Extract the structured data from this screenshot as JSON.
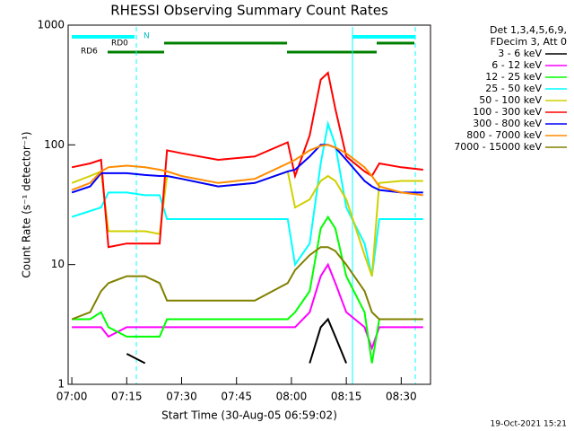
{
  "chart_data": {
    "type": "line",
    "title": "RHESSI Observing Summary Count Rates",
    "x_label": "Start Time (30-Aug-05 06:59:02)",
    "y_label": "Count Rate (s⁻¹ detector⁻¹)",
    "legend_header": [
      "Det 1,3,4,5,6,9,",
      "FDecim 3, Att 0"
    ],
    "footer": "19-Oct-2021 15:21",
    "annotations": [
      "N",
      "RD0",
      "RD6"
    ],
    "log_y": true,
    "legend": "right",
    "xlim": [
      "06:59",
      "08:38"
    ],
    "xticks": [
      "07:00",
      "07:15",
      "07:30",
      "07:45",
      "08:00",
      "08:15",
      "08:30"
    ],
    "ylim": [
      1,
      1000
    ],
    "yticks": [
      1,
      10,
      100,
      1000
    ],
    "x": [
      "07:00",
      "07:05",
      "07:08",
      "07:10",
      "07:15",
      "07:20",
      "07:24",
      "07:26",
      "07:30",
      "07:40",
      "07:50",
      "07:59",
      "08:01",
      "08:05",
      "08:08",
      "08:10",
      "08:12",
      "08:15",
      "08:20",
      "08:22",
      "08:24",
      "08:30",
      "08:36"
    ],
    "series": [
      {
        "name": "3 - 6 keV",
        "color": "#000000",
        "values": [
          null,
          null,
          null,
          null,
          1.8,
          1.5,
          null,
          null,
          null,
          null,
          null,
          null,
          null,
          1.5,
          3,
          3.5,
          2.5,
          1.5,
          null,
          null,
          null,
          null,
          null
        ]
      },
      {
        "name": "6 - 12 keV",
        "color": "#ff00ff",
        "values": [
          3,
          3,
          3,
          2.5,
          3,
          3,
          3,
          3,
          3,
          3,
          3,
          3,
          3,
          4,
          8,
          10,
          7,
          4,
          3,
          2,
          3,
          3,
          3
        ]
      },
      {
        "name": "12 - 25 keV",
        "color": "#00ff00",
        "values": [
          3.5,
          3.5,
          4,
          3,
          2.5,
          2.5,
          2.5,
          3.5,
          3.5,
          3.5,
          3.5,
          3.5,
          4,
          6,
          20,
          25,
          20,
          8,
          4,
          1.5,
          3.5,
          3.5,
          3.5
        ]
      },
      {
        "name": "25 - 50 keV",
        "color": "#00ffff",
        "values": [
          25,
          28,
          30,
          40,
          40,
          38,
          38,
          24,
          24,
          24,
          24,
          24,
          10,
          15,
          70,
          150,
          100,
          30,
          15,
          8,
          24,
          24,
          24
        ]
      },
      {
        "name": "50 - 100 keV",
        "color": "#d0d000",
        "values": [
          48,
          55,
          60,
          19,
          19,
          19,
          18,
          55,
          52,
          45,
          48,
          60,
          30,
          35,
          50,
          55,
          50,
          35,
          12,
          8,
          48,
          50,
          50
        ]
      },
      {
        "name": "100 - 300 keV",
        "color": "#ff0000",
        "values": [
          65,
          70,
          75,
          14,
          15,
          15,
          15,
          90,
          85,
          75,
          80,
          105,
          55,
          120,
          350,
          400,
          200,
          80,
          60,
          55,
          70,
          65,
          62
        ]
      },
      {
        "name": "300 - 800 keV",
        "color": "#0000ff",
        "values": [
          40,
          45,
          58,
          58,
          58,
          56,
          55,
          55,
          52,
          45,
          48,
          60,
          62,
          80,
          100,
          100,
          95,
          75,
          50,
          45,
          42,
          40,
          40
        ]
      },
      {
        "name": "800 - 7000 keV",
        "color": "#ff8c00",
        "values": [
          42,
          48,
          60,
          65,
          67,
          65,
          62,
          60,
          55,
          48,
          52,
          70,
          75,
          90,
          98,
          100,
          95,
          85,
          65,
          55,
          45,
          40,
          38
        ]
      },
      {
        "name": "7000 - 15000 keV",
        "color": "#808000",
        "values": [
          3.5,
          4,
          6,
          7,
          8,
          8,
          7,
          5,
          5,
          5,
          5,
          7,
          9,
          12,
          14,
          14,
          13,
          10,
          6,
          4,
          3.5,
          3.5,
          3.5
        ]
      }
    ]
  }
}
